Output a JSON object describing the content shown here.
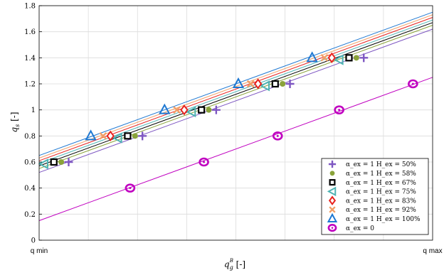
{
  "chart_data": {
    "type": "scatter",
    "title": "",
    "xlabel": "q_g^B [-]",
    "ylabel": "q_s [-]",
    "x_tick_labels": [
      "q min",
      "q max"
    ],
    "y_ticks": [
      "0",
      "0.2",
      "0.4",
      "0.6",
      "0.8",
      "1",
      "1.2",
      "1.4",
      "1.6",
      "1.8"
    ],
    "xlim": [
      0,
      8
    ],
    "ylim": [
      0,
      1.8
    ],
    "grid": true,
    "legend_position": "bottom-right",
    "series": [
      {
        "name": "α_ex = 1   H_ex = 50%",
        "marker": "plus",
        "color": "#7E57C2",
        "x": [
          0.6,
          2.1,
          3.6,
          5.1,
          6.6
        ],
        "y": [
          0.6,
          0.8,
          1.0,
          1.2,
          1.4
        ],
        "fit": [
          0.52,
          1.62
        ]
      },
      {
        "name": "α_ex = 1   H_ex = 58%",
        "marker": "dot",
        "color": "#8AA33A",
        "x": [
          0.45,
          1.95,
          3.45,
          4.95,
          6.45
        ],
        "y": [
          0.6,
          0.8,
          1.0,
          1.2,
          1.4
        ],
        "fit": [
          0.55,
          1.65
        ]
      },
      {
        "name": "α_ex = 1   H_ex = 67%",
        "marker": "square",
        "color": "#000000",
        "x": [
          0.3,
          1.8,
          3.3,
          4.8,
          6.3
        ],
        "y": [
          0.6,
          0.8,
          1.0,
          1.2,
          1.4
        ],
        "fit": [
          0.57,
          1.67
        ]
      },
      {
        "name": "α_ex = 1   H_ex = 75%",
        "marker": "triangle-left",
        "color": "#4EB3B3",
        "x": [
          0.1,
          1.6,
          3.1,
          4.6,
          6.1
        ],
        "y": [
          0.585,
          0.785,
          0.985,
          1.185,
          1.385
        ],
        "fit": [
          0.59,
          1.69
        ]
      },
      {
        "name": "α_ex = 1   H_ex = 83%",
        "marker": "diamond",
        "color": "#E8221E",
        "x": [
          1.45,
          2.95,
          4.45,
          5.95
        ],
        "y": [
          0.8,
          1.0,
          1.2,
          1.4
        ],
        "fit": [
          0.61,
          1.71
        ]
      },
      {
        "name": "α_ex = 1   H_ex = 92%",
        "marker": "cross",
        "color": "#F29E66",
        "x": [
          1.3,
          2.8,
          4.3,
          5.8
        ],
        "y": [
          0.8,
          1.0,
          1.2,
          1.4
        ],
        "fit": [
          0.63,
          1.73
        ]
      },
      {
        "name": "α_ex = 1   H_ex = 100%",
        "marker": "triangle-up",
        "color": "#1E78D2",
        "x": [
          1.05,
          2.55,
          4.05,
          5.55
        ],
        "y": [
          0.8,
          1.0,
          1.2,
          1.4
        ],
        "fit": [
          0.65,
          1.75
        ]
      },
      {
        "name": "α_ex = 0",
        "marker": "circle",
        "color": "#C000C0",
        "x": [
          1.85,
          3.35,
          4.85,
          6.1,
          7.6
        ],
        "y": [
          0.4,
          0.6,
          0.8,
          1.0,
          1.2
        ],
        "fit": [
          0.15,
          1.25
        ]
      }
    ]
  }
}
